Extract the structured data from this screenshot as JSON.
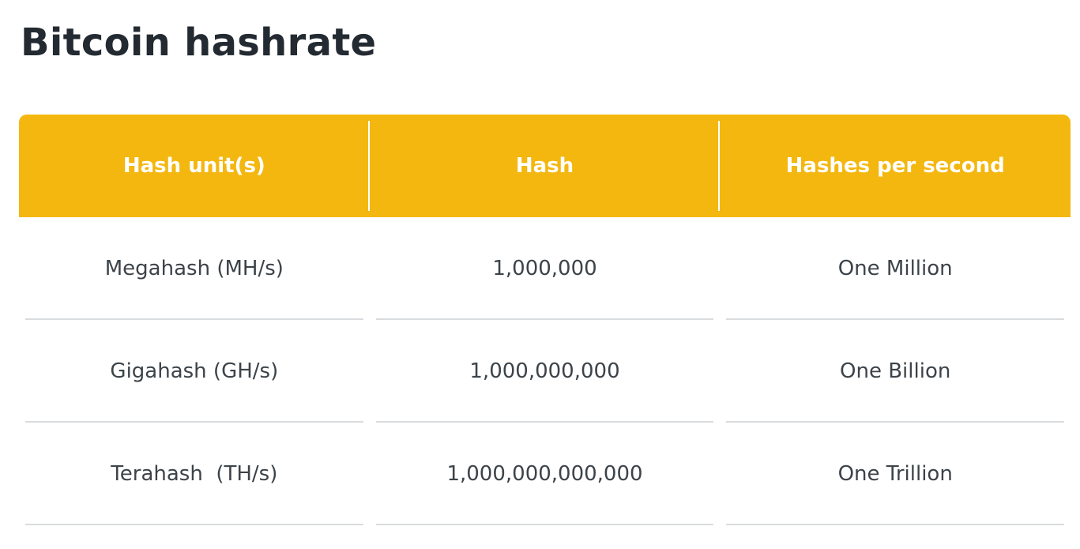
{
  "title": "Bitcoin hashrate",
  "table": {
    "headers": [
      "Hash unit(s)",
      "Hash",
      "Hashes per second"
    ],
    "rows": [
      [
        "Megahash (MH/s)",
        "1,000,000",
        "One Million"
      ],
      [
        "Gigahash (GH/s)",
        "1,000,000,000",
        "One Billion"
      ],
      [
        "Terahash  (TH/s)",
        "1,000,000,000,000",
        "One Trillion"
      ]
    ]
  },
  "colors": {
    "header_bg": "#f4b70f",
    "header_text": "#ffffff",
    "title_text": "#232a31",
    "cell_text": "#3c4349",
    "row_divider": "#d9dcde"
  }
}
